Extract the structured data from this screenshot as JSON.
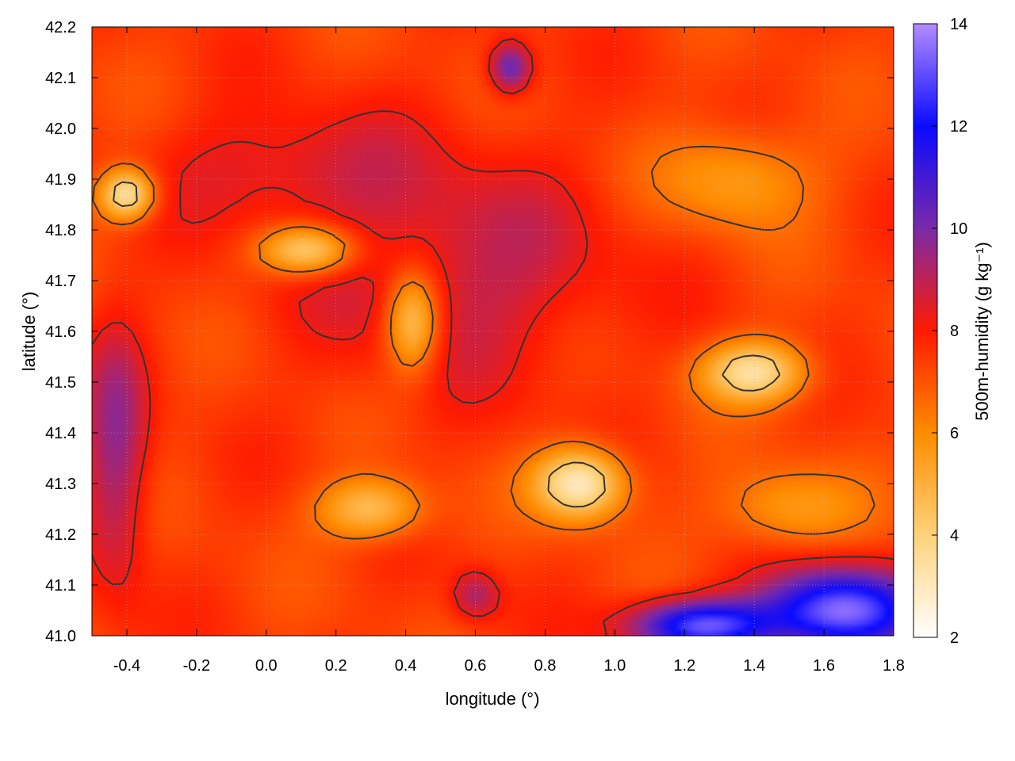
{
  "chart_data": {
    "type": "heatmap",
    "title": "",
    "xlabel": "longitude (°)",
    "ylabel": "latitude (°)",
    "colorbar_label": "500m-humidity (g kg⁻¹)",
    "xlim": [
      -0.5,
      1.8
    ],
    "ylim": [
      41.0,
      42.2
    ],
    "x_ticks": [
      "-0.4",
      "-0.2",
      "0.0",
      "0.2",
      "0.4",
      "0.6",
      "0.8",
      "1.0",
      "1.2",
      "1.4",
      "1.6",
      "1.8"
    ],
    "y_ticks": [
      "41.0",
      "41.1",
      "41.2",
      "41.3",
      "41.4",
      "41.5",
      "41.6",
      "41.7",
      "41.8",
      "41.9",
      "42.0",
      "42.1",
      "42.2"
    ],
    "colorbar_range": [
      2,
      14
    ],
    "colorbar_ticks": [
      "2",
      "4",
      "6",
      "8",
      "10",
      "12",
      "14"
    ],
    "colormap": [
      {
        "value": 2,
        "color": "#ffffff"
      },
      {
        "value": 4,
        "color": "#ffd27a"
      },
      {
        "value": 6,
        "color": "#ff8c00"
      },
      {
        "value": 8,
        "color": "#ff1a00"
      },
      {
        "value": 10,
        "color": "#7a2aa8"
      },
      {
        "value": 12,
        "color": "#0a0aff"
      },
      {
        "value": 14,
        "color": "#b38cff"
      }
    ],
    "grid": true,
    "contour_color": "#333333",
    "field": {
      "background": 7.4,
      "features": [
        {
          "lon": 0.55,
          "lat": 41.72,
          "value": 9.0,
          "sx": 0.42,
          "sy": 0.22
        },
        {
          "lon": 0.05,
          "lat": 41.92,
          "value": 8.6,
          "sx": 0.35,
          "sy": 0.12
        },
        {
          "lon": -0.43,
          "lat": 41.35,
          "value": 9.6,
          "sx": 0.09,
          "sy": 0.25
        },
        {
          "lon": 0.7,
          "lat": 42.12,
          "value": 10.5,
          "sx": 0.06,
          "sy": 0.05
        },
        {
          "lon": 0.6,
          "lat": 41.08,
          "value": 9.2,
          "sx": 0.07,
          "sy": 0.05
        },
        {
          "lon": 0.12,
          "lat": 41.76,
          "value": 3.6,
          "sx": 0.14,
          "sy": 0.05
        },
        {
          "lon": 0.42,
          "lat": 41.62,
          "value": 3.8,
          "sx": 0.08,
          "sy": 0.1
        },
        {
          "lon": -0.4,
          "lat": 41.87,
          "value": 3.2,
          "sx": 0.08,
          "sy": 0.05
        },
        {
          "lon": 0.9,
          "lat": 41.3,
          "value": 2.8,
          "sx": 0.13,
          "sy": 0.07
        },
        {
          "lon": 1.4,
          "lat": 41.52,
          "value": 3.5,
          "sx": 0.15,
          "sy": 0.06
        },
        {
          "lon": 0.3,
          "lat": 41.25,
          "value": 4.5,
          "sx": 0.15,
          "sy": 0.06
        },
        {
          "lon": 1.35,
          "lat": 41.9,
          "value": 5.5,
          "sx": 0.22,
          "sy": 0.1
        },
        {
          "lon": 1.5,
          "lat": 41.25,
          "value": 5.5,
          "sx": 0.2,
          "sy": 0.08
        },
        {
          "lon": 1.65,
          "lat": 41.05,
          "value": 13.5,
          "sx": 0.22,
          "sy": 0.08
        },
        {
          "lon": 1.25,
          "lat": 41.02,
          "value": 13.0,
          "sx": 0.2,
          "sy": 0.05
        }
      ]
    }
  }
}
